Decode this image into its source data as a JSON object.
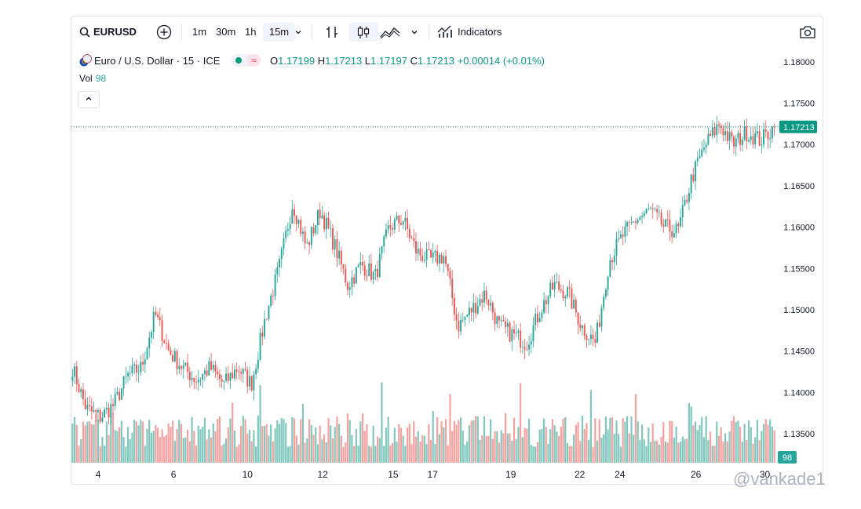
{
  "toolbar": {
    "symbol": "EURUSD",
    "intervals": [
      "1m",
      "30m",
      "1h",
      "15m"
    ],
    "active_interval": "15m",
    "indicators_label": "Indicators"
  },
  "legend": {
    "title": "Euro / U.S. Dollar · 15 · ICE",
    "o_key": "O",
    "o": "1.17199",
    "h_key": "H",
    "h": "1.17213",
    "l_key": "L",
    "l": "1.17197",
    "c_key": "C",
    "c": "1.17213",
    "change": "+0.00014 (+0.01%)",
    "vol_label": "Vol",
    "vol_value": "98"
  },
  "colors": {
    "up": "#26a69a",
    "down": "#ef5350",
    "up_vol": "#80c7bd",
    "down_vol": "#f4a19f",
    "last": "#089981"
  },
  "watermark": "@vankade1",
  "chart_data": {
    "type": "candlestick",
    "y_ticks": [
      "1.18000",
      "1.17500",
      "1.17000",
      "1.16500",
      "1.16000",
      "1.15500",
      "1.15000",
      "1.14500",
      "1.14000",
      "1.13500"
    ],
    "x_ticks": [
      "4",
      "6",
      "10",
      "12",
      "15",
      "17",
      "19",
      "22",
      "24",
      "26",
      "30"
    ],
    "last_price": "1.17213",
    "last_volume": "98",
    "ylim": [
      1.1315,
      1.1815
    ],
    "close_path": [
      [
        "4",
        1.143
      ],
      [
        "4",
        1.138
      ],
      [
        "4",
        1.137
      ],
      [
        "4",
        1.1385
      ],
      [
        "6",
        1.142
      ],
      [
        "6",
        1.143
      ],
      [
        "6",
        1.1495
      ],
      [
        "6",
        1.145
      ],
      [
        "6",
        1.143
      ],
      [
        "6",
        1.1415
      ],
      [
        "10",
        1.143
      ],
      [
        "10",
        1.141
      ],
      [
        "10",
        1.143
      ],
      [
        "12",
        1.141
      ],
      [
        "12",
        1.149
      ],
      [
        "12",
        1.155
      ],
      [
        "12",
        1.163
      ],
      [
        "12",
        1.1575
      ],
      [
        "12",
        1.162
      ],
      [
        "15",
        1.158
      ],
      [
        "15",
        1.153
      ],
      [
        "15",
        1.1555
      ],
      [
        "15",
        1.154
      ],
      [
        "15",
        1.16
      ],
      [
        "17",
        1.161
      ],
      [
        "17",
        1.157
      ],
      [
        "17",
        1.156
      ],
      [
        "17",
        1.1565
      ],
      [
        "17",
        1.148
      ],
      [
        "19",
        1.15
      ],
      [
        "19",
        1.152
      ],
      [
        "19",
        1.148
      ],
      [
        "19",
        1.147
      ],
      [
        "19",
        1.146
      ],
      [
        "22",
        1.15
      ],
      [
        "22",
        1.153
      ],
      [
        "22",
        1.152
      ],
      [
        "22",
        1.148
      ],
      [
        "22",
        1.146
      ],
      [
        "22",
        1.156
      ],
      [
        "24",
        1.159
      ],
      [
        "24",
        1.161
      ],
      [
        "24",
        1.162
      ],
      [
        "24",
        1.16
      ],
      [
        "24",
        1.1595
      ],
      [
        "24",
        1.166
      ],
      [
        "26",
        1.17
      ],
      [
        "26",
        1.1725
      ],
      [
        "26",
        1.17
      ],
      [
        "26",
        1.1715
      ],
      [
        "30",
        1.1705
      ],
      [
        "30",
        1.1721
      ]
    ]
  }
}
